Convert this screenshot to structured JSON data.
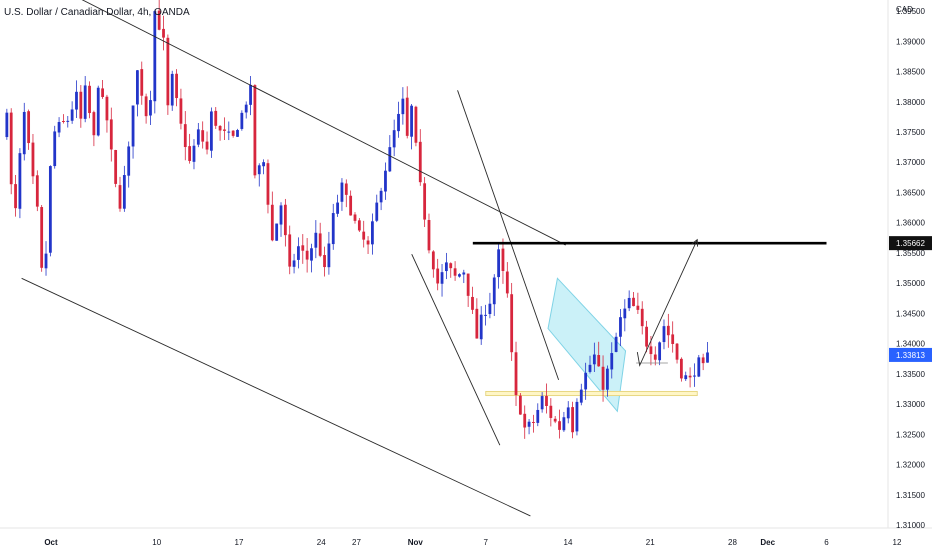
{
  "header": {
    "symbol_title": "U.S. Dollar / Canadian Dollar, 4h, OANDA"
  },
  "colors": {
    "up": "#2235c9",
    "down": "#d7263d",
    "trend": "#2a2a2a",
    "level": "#000000",
    "channel_fill": "#b9ecf5",
    "channel_stroke": "#7fd3e6",
    "zone_fill": "#fff6c6",
    "zone_stroke": "#e2cf72",
    "tag_dark": "#111111",
    "tag_price": "#2962ff"
  },
  "chart_data": {
    "type": "candlestick",
    "title": "U.S. Dollar / Canadian Dollar, 4h, OANDA",
    "y_axis": {
      "unit": "CAD",
      "range": [
        1.306,
        1.399
      ],
      "ticks": [
        "1.31000",
        "1.31500",
        "1.32000",
        "1.32500",
        "1.33000",
        "1.33500",
        "1.34000",
        "1.34500",
        "1.35000",
        "1.35500",
        "1.36000",
        "1.36500",
        "1.37000",
        "1.37500",
        "1.38000",
        "1.38500",
        "1.39000",
        "1.39500"
      ]
    },
    "x_axis": {
      "ticks": [
        {
          "label": "Oct",
          "d": 0,
          "bold": true
        },
        {
          "label": "10",
          "d": 9
        },
        {
          "label": "17",
          "d": 16
        },
        {
          "label": "24",
          "d": 23
        },
        {
          "label": "27",
          "d": 26
        },
        {
          "label": "Nov",
          "d": 31,
          "bold": true
        },
        {
          "label": "7",
          "d": 37
        },
        {
          "label": "14",
          "d": 44
        },
        {
          "label": "21",
          "d": 51
        },
        {
          "label": "28",
          "d": 58
        },
        {
          "label": "Dec",
          "d": 61,
          "bold": true
        },
        {
          "label": "6",
          "d": 66
        },
        {
          "label": "12",
          "d": 72
        }
      ]
    },
    "price_tags": {
      "level": {
        "label": "1.35662",
        "value": 1.35662
      },
      "last": {
        "label": "1.33813",
        "value": 1.33813
      }
    },
    "path": [
      [
        0,
        1.374
      ],
      [
        1,
        1.379
      ],
      [
        2,
        1.366
      ],
      [
        3,
        1.362
      ],
      [
        4,
        1.371
      ],
      [
        5,
        1.378
      ],
      [
        7,
        1.367
      ],
      [
        8,
        1.362
      ],
      [
        9,
        1.352
      ],
      [
        10,
        1.355
      ],
      [
        11,
        1.369
      ],
      [
        12,
        1.375
      ],
      [
        13,
        1.376
      ],
      [
        15,
        1.377
      ],
      [
        17,
        1.381
      ],
      [
        18,
        1.377
      ],
      [
        19,
        1.382
      ],
      [
        21,
        1.374
      ],
      [
        22,
        1.383
      ],
      [
        24,
        1.377
      ],
      [
        26,
        1.366
      ],
      [
        27,
        1.363
      ],
      [
        29,
        1.372
      ],
      [
        30,
        1.38
      ],
      [
        31,
        1.385
      ],
      [
        33,
        1.378
      ],
      [
        34,
        1.381
      ],
      [
        35,
        1.395
      ],
      [
        37,
        1.39
      ],
      [
        38,
        1.379
      ],
      [
        39,
        1.384
      ],
      [
        41,
        1.376
      ],
      [
        43,
        1.37
      ],
      [
        45,
        1.375
      ],
      [
        47,
        1.372
      ],
      [
        48,
        1.378
      ],
      [
        50,
        1.375
      ],
      [
        53,
        1.374
      ],
      [
        55,
        1.378
      ],
      [
        57,
        1.382
      ],
      [
        58,
        1.368
      ],
      [
        60,
        1.37
      ],
      [
        62,
        1.357
      ],
      [
        64,
        1.363
      ],
      [
        66,
        1.352
      ],
      [
        68,
        1.356
      ],
      [
        70,
        1.354
      ],
      [
        72,
        1.358
      ],
      [
        74,
        1.352
      ],
      [
        76,
        1.361
      ],
      [
        78,
        1.366
      ],
      [
        80,
        1.362
      ],
      [
        82,
        1.358
      ],
      [
        84,
        1.356
      ],
      [
        86,
        1.363
      ],
      [
        88,
        1.369
      ],
      [
        90,
        1.375
      ],
      [
        92,
        1.38
      ],
      [
        93,
        1.374
      ],
      [
        94,
        1.379
      ],
      [
        96,
        1.366
      ],
      [
        98,
        1.356
      ],
      [
        100,
        1.35
      ],
      [
        102,
        1.353
      ],
      [
        104,
        1.351
      ],
      [
        106,
        1.352
      ],
      [
        108,
        1.345
      ],
      [
        109,
        1.341
      ],
      [
        110,
        1.344
      ],
      [
        112,
        1.347
      ],
      [
        114,
        1.355
      ],
      [
        116,
        1.348
      ],
      [
        117,
        1.338
      ],
      [
        118,
        1.331
      ],
      [
        119,
        1.329
      ],
      [
        120,
        1.326
      ],
      [
        122,
        1.327
      ],
      [
        124,
        1.331
      ],
      [
        126,
        1.328
      ],
      [
        128,
        1.326
      ],
      [
        130,
        1.33
      ],
      [
        131,
        1.326
      ],
      [
        132,
        1.331
      ],
      [
        134,
        1.335
      ],
      [
        136,
        1.338
      ],
      [
        138,
        1.333
      ],
      [
        140,
        1.338
      ],
      [
        142,
        1.344
      ],
      [
        144,
        1.347
      ],
      [
        146,
        1.345
      ],
      [
        148,
        1.34
      ],
      [
        150,
        1.338
      ],
      [
        152,
        1.343
      ],
      [
        154,
        1.34
      ],
      [
        156,
        1.335
      ],
      [
        158,
        1.334
      ],
      [
        160,
        1.337
      ],
      [
        161,
        1.336
      ],
      [
        162,
        1.338
      ]
    ],
    "lines": [
      {
        "name": "channel-upper-line",
        "from": [
          0.5,
          1.399
        ],
        "to": [
          43.8,
          1.3563
        ]
      },
      {
        "name": "channel-lower-line",
        "from": [
          -2.5,
          1.3508
        ],
        "to": [
          40.8,
          1.3115
        ]
      },
      {
        "name": "steep-line-left",
        "from": [
          30.7,
          1.3548
        ],
        "to": [
          38.2,
          1.3232
        ]
      },
      {
        "name": "steep-line-right",
        "from": [
          34.6,
          1.3819
        ],
        "to": [
          43.2,
          1.334
        ]
      }
    ],
    "level_line": {
      "from": 35.9,
      "to": 66.0,
      "value": 1.35662
    },
    "flag_channel": [
      [
        43.1,
        1.3508
      ],
      [
        48.9,
        1.3388
      ],
      [
        48.2,
        1.3288
      ],
      [
        42.3,
        1.3425
      ]
    ],
    "support_zone": {
      "from": 37.0,
      "to": 55.0,
      "low": 1.3314,
      "high": 1.3321
    },
    "resistance_stub": {
      "from": 49.8,
      "to": 52.5,
      "value": 1.3368
    },
    "projection": [
      [
        49.9,
        1.3386
      ],
      [
        50.1,
        1.3364
      ],
      [
        55.0,
        1.3572
      ]
    ]
  }
}
